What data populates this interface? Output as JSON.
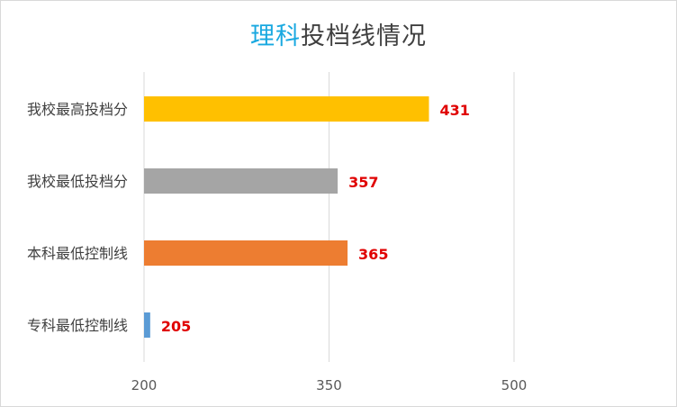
{
  "chart_data": {
    "type": "bar",
    "orientation": "horizontal",
    "title_highlight": "理科",
    "title_rest": "投档线情况",
    "categories": [
      "我校最高投档分",
      "我校最低投档分",
      "本科最低控制线",
      "专科最低控制线"
    ],
    "values": [
      431,
      357,
      365,
      205
    ],
    "value_labels": [
      "431",
      "357",
      "365",
      "205"
    ],
    "colors": [
      "#ffc000",
      "#a5a5a5",
      "#ed7d31",
      "#5b9bd5"
    ],
    "xlim": [
      200,
      500
    ],
    "xticks": [
      200,
      350,
      500
    ],
    "xtick_labels": [
      "200",
      "350",
      "500"
    ],
    "grid": true,
    "legend": "none"
  }
}
